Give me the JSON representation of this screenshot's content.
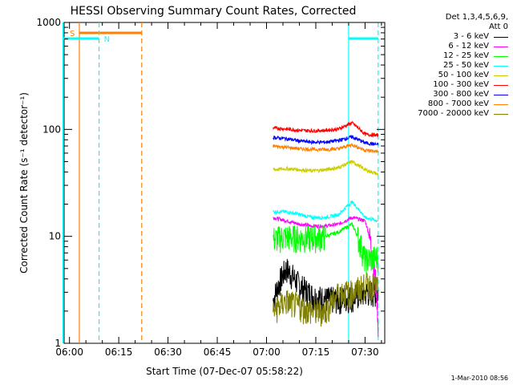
{
  "chart_data": {
    "type": "line",
    "title": "HESSI Observing Summary Count Rates, Corrected",
    "xlabel": "Start Time (07-Dec-07 05:58:22)",
    "ylabel": "Corrected Count Rate (s⁻¹ detector⁻¹)",
    "yscale": "log",
    "xlim": [
      "05:58:22",
      "07:36:00"
    ],
    "ylim": [
      1,
      1000
    ],
    "x_ticks": [
      "06:00",
      "06:15",
      "06:30",
      "06:45",
      "07:00",
      "07:15",
      "07:30"
    ],
    "y_ticks": [
      "1",
      "10",
      "100",
      "1000"
    ],
    "legend_header": [
      "Det 1,3,4,5,6,9,",
      "Att 0"
    ],
    "flags": [
      {
        "label": "S",
        "color": "#ff7f00",
        "start": "06:03",
        "end": "06:22"
      },
      {
        "label": "N",
        "color": "#00ffff",
        "start": "05:58",
        "end": "06:09"
      }
    ],
    "data_start": "07:02",
    "data_end": "07:34",
    "series": [
      {
        "name": "3 - 6 keV",
        "color": "#000000",
        "values": [
          2.5,
          5.0,
          3.5,
          2.8,
          2.6,
          2.6,
          2.7,
          3.0,
          3.0
        ]
      },
      {
        "name": "6 - 12 keV",
        "color": "#ff00ff",
        "values": [
          15,
          14,
          13,
          12.5,
          12.5,
          13,
          15,
          14,
          1.5
        ]
      },
      {
        "name": "12 - 25 keV",
        "color": "#00ff00",
        "values": [
          9.5,
          10,
          9.8,
          9.8,
          10,
          11,
          13,
          6,
          6.5
        ]
      },
      {
        "name": "25 - 50 keV",
        "color": "#00ffff",
        "values": [
          17,
          17,
          16,
          15,
          15,
          16,
          21,
          15,
          14
        ]
      },
      {
        "name": "50 - 100 keV",
        "color": "#cccc00",
        "values": [
          42,
          43,
          42,
          41,
          42,
          44,
          50,
          42,
          38
        ]
      },
      {
        "name": "100 - 300 keV",
        "color": "#ff0000",
        "values": [
          103,
          101,
          98,
          97,
          98,
          101,
          115,
          90,
          88
        ]
      },
      {
        "name": "300 - 800 keV",
        "color": "#0000ff",
        "values": [
          84,
          82,
          78,
          76,
          76,
          79,
          85,
          75,
          72
        ]
      },
      {
        "name": "800 - 7000 keV",
        "color": "#ff7f00",
        "values": [
          70,
          68,
          66,
          65,
          65,
          66,
          72,
          64,
          62
        ]
      },
      {
        "name": "7000 - 20000 keV",
        "color": "#808000",
        "values": [
          2.0,
          2.5,
          2.2,
          2.0,
          2.0,
          3.0,
          3.0,
          3.5,
          3.5
        ]
      }
    ]
  },
  "footer": {
    "date": "1-Mar-2010 08:56"
  }
}
